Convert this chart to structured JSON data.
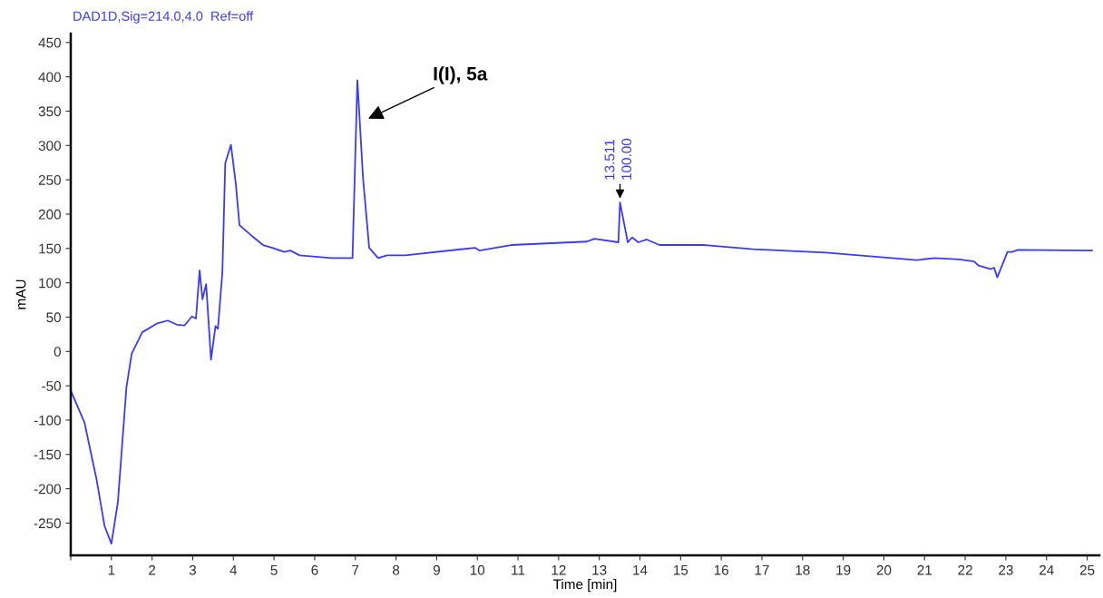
{
  "chart_data": {
    "type": "line",
    "title": "DAD1D,Sig=214.0,4.0  Ref=off",
    "xlabel": "Time [min]",
    "ylabel": "mAU",
    "series": [
      {
        "color": "#3a3aff",
        "x": [
          0,
          0.34,
          0.64,
          0.83,
          1.0,
          1.16,
          1.37,
          1.5,
          1.76,
          2.13,
          2.39,
          2.61,
          2.8,
          2.98,
          3.08,
          3.17,
          3.24,
          3.33,
          3.45,
          3.56,
          3.62,
          3.73,
          3.8,
          3.94,
          4.06,
          4.15,
          4.44,
          4.73,
          4.96,
          5.25,
          5.4,
          5.63,
          6.41,
          6.93,
          7.05,
          7.19,
          7.34,
          7.56,
          7.78,
          8.23,
          9.94,
          10.05,
          10.83,
          12.69,
          12.88,
          13.47,
          13.51,
          13.7,
          13.81,
          13.96,
          14.17,
          14.48,
          15.6,
          16.79,
          18.57,
          20.8,
          21.25,
          21.85,
          22.22,
          22.33,
          22.63,
          22.71,
          22.79,
          23.04,
          23.15,
          23.3,
          25.12
        ],
        "values": [
          -57,
          -104,
          -188,
          -254,
          -280,
          -219,
          -52,
          -3,
          28,
          41,
          45,
          39,
          38,
          51,
          48,
          118,
          76,
          98,
          -12,
          37,
          33,
          116,
          274,
          301,
          244,
          184,
          169,
          155,
          151,
          145,
          147,
          140,
          136,
          136,
          395,
          252,
          151,
          136,
          140,
          140,
          151,
          147,
          155,
          160,
          164,
          159,
          217,
          159,
          166,
          159,
          163,
          155,
          155,
          149,
          144,
          133,
          136,
          134,
          131,
          125,
          120,
          122,
          108,
          145,
          145,
          148,
          147
        ]
      }
    ],
    "xlim": [
      0,
      25.3
    ],
    "ylim": [
      -297,
      463
    ],
    "xticks": [
      {
        "value": 0,
        "label": null
      },
      1,
      2,
      3,
      4,
      5,
      6,
      7,
      8,
      9,
      10,
      11,
      12,
      13,
      14,
      15,
      16,
      17,
      18,
      19,
      20,
      21,
      22,
      23,
      24,
      25
    ],
    "yticks": [
      -250,
      -200,
      -150,
      -100,
      -50,
      0,
      50,
      100,
      150,
      200,
      250,
      300,
      350,
      400,
      450
    ],
    "annotations": [
      "I(I), 5a",
      {
        "text": "13.511",
        "x": 13.51,
        "y": 217
      },
      {
        "text": "100.00",
        "x": 13.51,
        "y": 217
      }
    ],
    "grid": false,
    "legend": false,
    "marker": "none",
    "line_style": "solid"
  }
}
